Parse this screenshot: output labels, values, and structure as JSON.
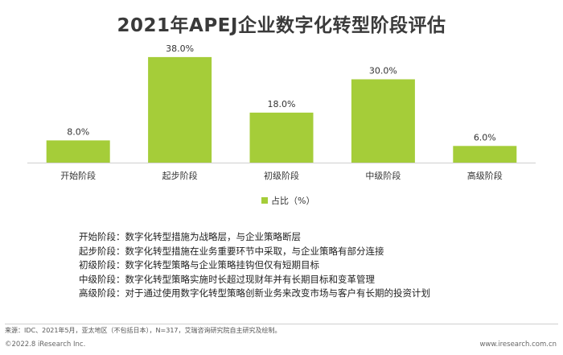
{
  "chart_data": {
    "type": "bar",
    "title": "2021年APEJ企业数字化转型阶段评估",
    "categories": [
      "开始阶段",
      "起步阶段",
      "初级阶段",
      "中级阶段",
      "高级阶段"
    ],
    "series": [
      {
        "name": "占比（%）",
        "values": [
          8.0,
          38.0,
          18.0,
          30.0,
          6.0
        ],
        "labels": [
          "8.0%",
          "38.0%",
          "18.0%",
          "30.0%",
          "6.0%"
        ],
        "color": "#a5cd39"
      }
    ],
    "ylim": [
      0,
      40
    ],
    "grid": false,
    "legend": "bottom"
  },
  "definitions": [
    "开始阶段：数字化转型措施为战略层，与企业策略断层",
    "起步阶段：数字化转型措施在业务重要环节中采取，与企业策略有部分连接",
    "初级阶段：数字化转型策略与企业策略挂钩但仅有短期目标",
    "中级阶段：数字化转型策略实施时长超过现财年并有长期目标和变革管理",
    "高级阶段：对于通过使用数字化转型策略创新业务来改变市场与客户有长期的投资计划"
  ],
  "footer": {
    "source": "来源：IDC、2021年5月，亚太地区（不包括日本），N=317，艾瑞咨询研究院自主研究及绘制。",
    "copyright": "©2022.8 iResearch Inc.",
    "website": "www.iresearch.com.cn"
  }
}
